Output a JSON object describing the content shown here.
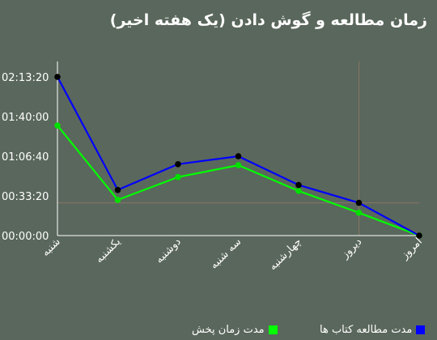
{
  "title": "زمان مطالعه و گوش دادن (یک هفته اخیر)",
  "colors": {
    "background": "#5a675c",
    "read": "#0000ff",
    "listen": "#00ff00",
    "read_point": "#000000",
    "listen_point": "#00e000",
    "crosshair": "#8a7568"
  },
  "chart_data": {
    "type": "line",
    "categories": [
      "شنبه",
      "یکشنبه",
      "دوشنبه",
      "سه شنبه",
      "چهارشنبه",
      "دیروز",
      "امروز"
    ],
    "y_tick_labels": [
      "00:00:00",
      "00:33:20",
      "01:06:40",
      "01:40:00",
      "02:13:20"
    ],
    "y_unit": "seconds",
    "ylim": [
      0,
      8000
    ],
    "grid": false,
    "legend_position": "bottom",
    "series": [
      {
        "name": "مدت مطالعه کتاب ها",
        "color": "#0000ff",
        "values": [
          8000,
          2300,
          3600,
          4000,
          2550,
          1650,
          0
        ]
      },
      {
        "name": "مدت زمان پخش",
        "color": "#00ff00",
        "values": [
          5550,
          1800,
          2950,
          3550,
          2250,
          1150,
          0
        ]
      }
    ],
    "crosshair": {
      "category": "دیروز",
      "value": 1650
    }
  }
}
